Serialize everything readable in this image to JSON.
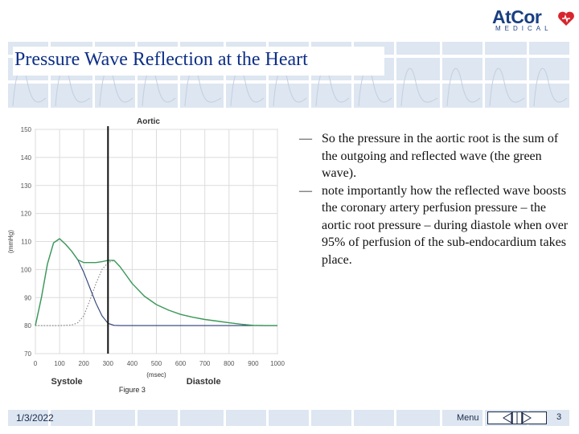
{
  "logo": {
    "main": "AtCor",
    "sub": "MEDICAL"
  },
  "slide": {
    "title": "Pressure Wave Reflection at the Heart"
  },
  "bullets": [
    {
      "dash": "—",
      "text": "So the pressure in the aortic root is the sum of the outgoing and reflected wave (the green wave)."
    },
    {
      "dash": "—",
      "text": "note importantly how the reflected wave boosts the coronary artery perfusion pressure – the aortic root pressure – during diastole when over 95% of perfusion of the sub-endocardium takes place."
    }
  ],
  "footer": {
    "date": "1/3/2022",
    "menu": "Menu",
    "page": "3"
  },
  "colors": {
    "title": "#0d2f86",
    "band": "#dde6f1",
    "green": "#3c9a5a",
    "blue": "#2c3f78",
    "grey": "#8a8a8a"
  },
  "chart_data": {
    "type": "line",
    "title": "Aortic",
    "xlabel": "(msec)",
    "ylabel": "(mmHg)",
    "xlim": [
      0,
      1000
    ],
    "ylim": [
      70,
      150
    ],
    "xticks": [
      0,
      100,
      200,
      300,
      400,
      500,
      600,
      700,
      800,
      900,
      1000
    ],
    "yticks": [
      70,
      80,
      90,
      100,
      110,
      120,
      130,
      140,
      150
    ],
    "grid": true,
    "vline_x": 300,
    "phase_labels": [
      "Systole",
      "Diastole"
    ],
    "caption": "Figure 3",
    "series": [
      {
        "style": "green-solid",
        "x": [
          0,
          25,
          50,
          75,
          100,
          125,
          150,
          175,
          200,
          225,
          250,
          275,
          300,
          325,
          350,
          375,
          400,
          450,
          500,
          550,
          600,
          650,
          700,
          750,
          800,
          850,
          900,
          950,
          1000
        ],
        "y": [
          80,
          90,
          102,
          109.5,
          111,
          109,
          106.5,
          103.5,
          102.5,
          102.5,
          102.5,
          102.8,
          103.3,
          103.3,
          101,
          98,
          95,
          90.5,
          87.5,
          85.5,
          84,
          83,
          82.2,
          81.6,
          81,
          80.5,
          80.1,
          80,
          80
        ]
      },
      {
        "style": "blue-solid",
        "x": [
          0,
          25,
          50,
          75,
          100,
          125,
          150,
          175,
          200,
          225,
          250,
          275,
          300,
          325,
          350,
          400,
          500,
          600,
          700,
          800,
          900,
          1000
        ],
        "y": [
          80,
          90,
          102,
          109.5,
          111,
          109,
          106.5,
          103.5,
          99,
          93.5,
          88,
          83.5,
          80.8,
          80.1,
          80,
          80,
          80,
          80,
          80,
          80,
          80,
          80
        ]
      },
      {
        "style": "grey-dotted",
        "x": [
          0,
          100,
          150,
          175,
          200,
          225,
          250,
          275,
          300,
          325,
          350,
          375,
          400,
          450,
          500,
          550,
          600,
          650,
          700,
          750,
          800,
          850,
          900,
          950,
          1000
        ],
        "y": [
          80,
          80,
          80.2,
          81,
          83.5,
          89,
          95,
          100,
          102.5,
          103.2,
          101,
          98,
          95,
          90.5,
          87.5,
          85.5,
          84,
          83,
          82.2,
          81.6,
          81,
          80.5,
          80.1,
          80,
          80
        ]
      }
    ]
  }
}
